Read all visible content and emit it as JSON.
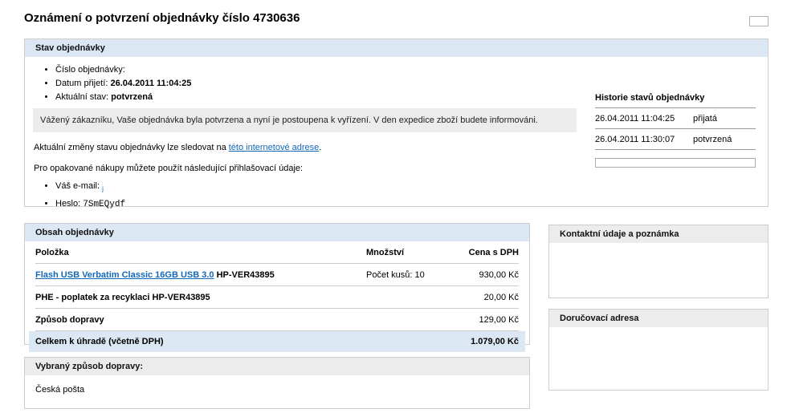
{
  "page": {
    "title": "Oznámení o potvrzení objednávky číslo 4730636"
  },
  "colors": {
    "header_blue": "#dbe8f4",
    "header_gray": "#ececec",
    "message_box_gray": "#ececec",
    "link_blue": "#1368b8",
    "total_row_blue": "#dbe8f4"
  },
  "status_panel": {
    "header": "Stav objednávky",
    "bullets": [
      {
        "label": "Číslo objednávky:",
        "value": ""
      },
      {
        "label": "Datum přijetí:",
        "value": "26.04.2011 11:04:25"
      },
      {
        "label": "Aktuální stav:",
        "value": "potvrzená"
      }
    ],
    "message": "Vážený zákazníku, Vaše objednávka byla potvrzena a nyní je postoupena k vyřízení. V den expedice zboží budete informováni.",
    "tracking_text_before": "Aktuální změny stavu objednávky lze sledovat na ",
    "tracking_link": "této internetové adrese",
    "tracking_text_after": ".",
    "login_intro": "Pro opakované nákupy můžete použít následující přihlašovací údaje:",
    "email_label": "Váš e-mail: ",
    "email_value": "j",
    "password_label": "Heslo: ",
    "password_value": "7SmEQydf"
  },
  "history": {
    "header": "Historie stavů objednávky",
    "rows": [
      {
        "datetime": "26.04.2011 11:04:25",
        "status": "přijatá"
      },
      {
        "datetime": "26.04.2011 11:30:07",
        "status": "potvrzená"
      }
    ]
  },
  "order_contents": {
    "header": "Obsah objednávky",
    "columns": {
      "item": "Položka",
      "quantity": "Množství",
      "price": "Cena s DPH"
    },
    "rows": [
      {
        "item_link": "Flash USB Verbatim Classic 16GB USB 3.0",
        "item_suffix": " HP-VER43895",
        "quantity": "Počet kusů: 10",
        "price": "930,00 Kč"
      },
      {
        "item": "PHE - poplatek za recyklaci HP-VER43895",
        "quantity": "",
        "price": "20,00 Kč"
      },
      {
        "item": "Způsob dopravy",
        "quantity": "",
        "price": "129,00 Kč"
      }
    ],
    "total_row": {
      "label": "Celkem k úhradě (včetně DPH)",
      "price": "1.079,00 Kč"
    }
  },
  "contact_panel": {
    "header": "Kontaktní údaje a poznámka"
  },
  "delivery_panel": {
    "header": "Doručovací adresa"
  },
  "shipping_panel": {
    "header": "Vybraný způsob dopravy:",
    "value": "Česká pošta"
  }
}
